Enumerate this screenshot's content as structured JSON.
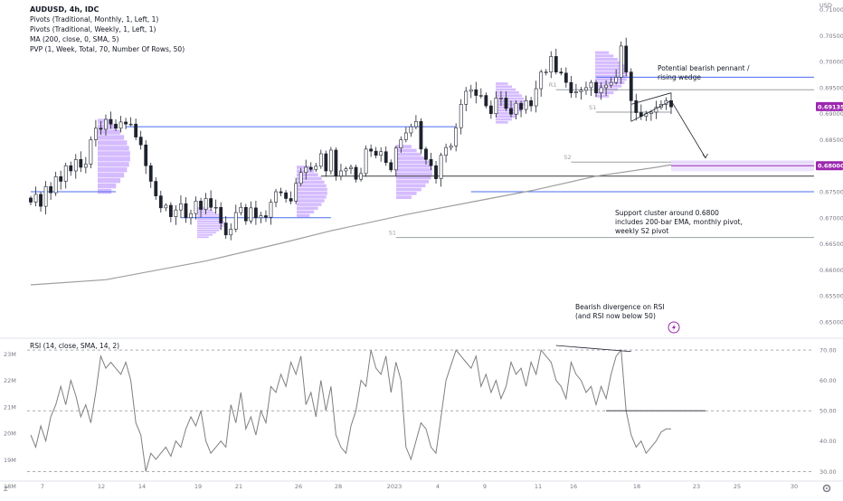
{
  "header": {
    "symbol": "AUDUSD, 4h, IDC",
    "indicators": [
      "Pivots (Traditional, Monthly, 1, Left, 1)",
      "Pivots (Traditional, Weekly, 1, Left, 1)",
      "MA (200, close, 0, SMA, 5)",
      "PVP (1, Week, Total, 70, Number Of Rows, 50)"
    ]
  },
  "rsi_title": "RSI (14, close, SMA, 14, 2)",
  "annotations": {
    "pennant": "Potential bearish pennant / rising wedge",
    "support": "Support cluster around 0.6800 includes 200-bar EMA, monthly pivot, weekly S2 pivot",
    "divergence": "Bearish divergence on RSI (and RSI now below 50)"
  },
  "pivot_labels": [
    "R1",
    "S1",
    "S2",
    "S1"
  ],
  "price_labels": {
    "current": "0.69135",
    "support": "0.68000"
  },
  "bottom_left": "Z",
  "colors": {
    "up": "#089981",
    "down": "#1e222d",
    "candle": "#1e222d",
    "level_blue": "#4a6cf0",
    "level_gray": "#9aa0a6",
    "ma": "#9e9e9e",
    "rsi": "#7f7f7f",
    "volume_profile": "#b384ff",
    "badge": "#9c27b0"
  },
  "chart_data": [
    {
      "type": "line",
      "title": "AUDUSD, 4h, IDC",
      "x_tick_labels": [
        "7",
        "12",
        "14",
        "19",
        "21",
        "26",
        "28",
        "2023",
        "4",
        "9",
        "11",
        "16",
        "18",
        "23",
        "25",
        "30"
      ],
      "y_unit_label": "USD",
      "y_tick_labels": [
        "0.71000",
        "0.70500",
        "0.70000",
        "0.69500",
        "0.69000",
        "0.68500",
        "0.68000",
        "0.67500",
        "0.67000",
        "0.66500",
        "0.66000",
        "0.65500",
        "0.65000"
      ],
      "ylim": [
        0.6472,
        0.7108
      ],
      "close_series": [
        0.673,
        0.6745,
        0.6722,
        0.676,
        0.6748,
        0.6779,
        0.677,
        0.68,
        0.679,
        0.6812,
        0.6797,
        0.6803,
        0.685,
        0.6872,
        0.687,
        0.6889,
        0.688,
        0.6872,
        0.6884,
        0.688,
        0.688,
        0.6855,
        0.684,
        0.68,
        0.677,
        0.6742,
        0.6719,
        0.6724,
        0.6702,
        0.6715,
        0.6727,
        0.67,
        0.6708,
        0.6732,
        0.6716,
        0.6737,
        0.672,
        0.672,
        0.669,
        0.6667,
        0.6678,
        0.671,
        0.672,
        0.6694,
        0.6719,
        0.67,
        0.6704,
        0.6701,
        0.673,
        0.675,
        0.6748,
        0.6737,
        0.6732,
        0.6766,
        0.6787,
        0.6797,
        0.6793,
        0.6799,
        0.6823,
        0.679,
        0.683,
        0.678,
        0.679,
        0.6794,
        0.6797,
        0.6774,
        0.6785,
        0.6832,
        0.6828,
        0.682,
        0.6827,
        0.6806,
        0.6792,
        0.6834,
        0.685,
        0.6863,
        0.6875,
        0.6885,
        0.6832,
        0.6812,
        0.68,
        0.6775,
        0.682,
        0.6835,
        0.6838,
        0.6873,
        0.6918,
        0.6943,
        0.6946,
        0.6935,
        0.6935,
        0.6915,
        0.69,
        0.693,
        0.693,
        0.691,
        0.6899,
        0.692,
        0.6908,
        0.6925,
        0.6915,
        0.6948,
        0.698,
        0.698,
        0.701,
        0.698,
        0.6978,
        0.696,
        0.694,
        0.6942,
        0.6945,
        0.695,
        0.696,
        0.694,
        0.695,
        0.6955,
        0.696,
        0.697,
        0.703,
        0.698,
        0.6925,
        0.6902,
        0.6895,
        0.69,
        0.6903,
        0.6912,
        0.6918,
        0.6925,
        0.6913
      ],
      "ma_200": {
        "name": "MA (200, close, 0, SMA, 5)",
        "points": [
          [
            0,
            0.6571
          ],
          [
            15,
            0.6581
          ],
          [
            35,
            0.6617
          ],
          [
            50,
            0.6651
          ],
          [
            60,
            0.6675
          ],
          [
            75,
            0.6706
          ],
          [
            88,
            0.673
          ],
          [
            100,
            0.6752
          ],
          [
            113,
            0.678
          ],
          [
            125,
            0.6797
          ],
          [
            128,
            0.6802
          ]
        ]
      },
      "levels": [
        {
          "value": 0.697,
          "color": "blue",
          "x_from": 113,
          "x_to": 150
        },
        {
          "value": 0.6946,
          "color": "gray",
          "x_from": 105,
          "x_to": 150,
          "label": "R1"
        },
        {
          "value": 0.6903,
          "color": "gray",
          "x_from": 113,
          "x_to": 128,
          "label": "S1"
        },
        {
          "value": 0.6875,
          "color": "blue",
          "x_from": 19,
          "x_to": 85
        },
        {
          "value": 0.6807,
          "color": "gray",
          "x_from": 108,
          "x_to": 150,
          "label": "S2"
        },
        {
          "value": 0.678,
          "color": "black",
          "x_from": 58,
          "x_to": 150
        },
        {
          "value": 0.68,
          "color": "purple",
          "x_from": 128,
          "x_to": 150
        },
        {
          "value": 0.675,
          "color": "blue",
          "x_from": 0,
          "x_to": 17
        },
        {
          "value": 0.675,
          "color": "blue",
          "x_from": 88,
          "x_to": 150
        },
        {
          "value": 0.67,
          "color": "blue",
          "x_from": 30,
          "x_to": 60
        },
        {
          "value": 0.6662,
          "color": "gray",
          "x_from": 73,
          "x_to": 150,
          "label": "S1"
        }
      ],
      "projection": [
        [
          128,
          0.6925
        ],
        [
          136,
          0.6815
        ]
      ],
      "wedge": {
        "upper": [
          [
            120,
            0.6918
          ],
          [
            128,
            0.694
          ]
        ],
        "lower": [
          [
            120,
            0.6885
          ],
          [
            128,
            0.6925
          ]
        ]
      }
    },
    {
      "type": "line",
      "title": "RSI (14, close, SMA, 14, 2)",
      "x_tick_labels": [
        "7",
        "12",
        "14",
        "19",
        "21",
        "26",
        "28",
        "2023",
        "4",
        "9",
        "11",
        "16",
        "18",
        "23",
        "25",
        "30"
      ],
      "y_tick_labels": [
        "70.00",
        "60.00",
        "50.00",
        "40.00",
        "30.00"
      ],
      "left_tick_labels": [
        "23M",
        "22M",
        "21M",
        "20M",
        "19M",
        "18M"
      ],
      "ylim": [
        28,
        73
      ],
      "values": [
        42,
        38,
        45,
        40,
        48,
        52,
        58,
        52,
        60,
        55,
        48,
        52,
        46,
        56,
        68,
        64,
        66,
        64,
        62,
        66,
        60,
        46,
        42,
        30,
        36,
        34,
        36,
        38,
        35,
        40,
        38,
        44,
        48,
        45,
        50,
        40,
        36,
        38,
        40,
        38,
        52,
        46,
        56,
        44,
        48,
        42,
        50,
        46,
        58,
        56,
        62,
        58,
        66,
        62,
        68,
        52,
        56,
        48,
        60,
        50,
        58,
        42,
        38,
        36,
        45,
        50,
        60,
        58,
        70,
        64,
        62,
        68,
        56,
        66,
        60,
        38,
        34,
        40,
        46,
        44,
        38,
        36,
        48,
        60,
        65,
        70,
        68,
        66,
        64,
        68,
        58,
        62,
        56,
        60,
        54,
        58,
        66,
        62,
        64,
        58,
        66,
        62,
        70,
        68,
        66,
        60,
        58,
        54,
        66,
        62,
        60,
        56,
        58,
        52,
        58,
        54,
        62,
        68,
        70,
        50,
        42,
        38,
        40,
        36,
        38,
        40,
        43,
        44,
        44
      ],
      "hlines": [
        70,
        50,
        30
      ],
      "divergence_line": [
        [
          105,
          71.5
        ],
        [
          120,
          69.5
        ]
      ],
      "fifty_line": [
        115,
        135
      ]
    }
  ]
}
